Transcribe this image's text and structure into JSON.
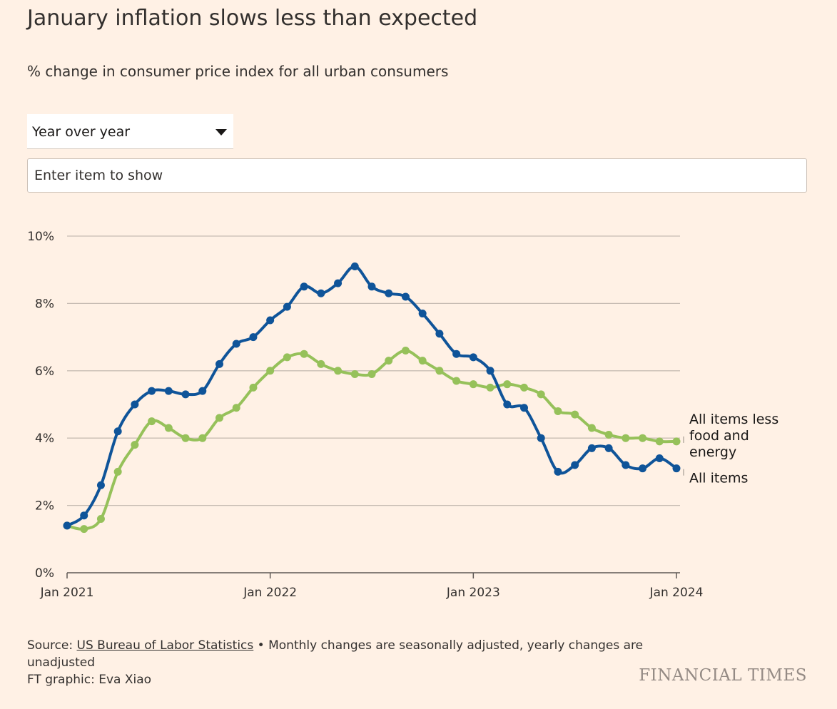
{
  "header": {
    "title": "January inflation slows less than expected",
    "subtitle": "% change in consumer price index for all urban consumers"
  },
  "controls": {
    "period_select": {
      "selected": "Year over year"
    },
    "item_search": {
      "placeholder": "Enter item to show"
    }
  },
  "footer": {
    "source_prefix": "Source: ",
    "source_link": "US Bureau of Labor Statistics",
    "source_note": " • Monthly changes are seasonally adjusted, yearly changes are unadjusted",
    "credit": "FT graphic: Eva Xiao",
    "brand": "FINANCIAL TIMES"
  },
  "chart_data": {
    "type": "line",
    "title": "January inflation slows less than expected",
    "subtitle": "% change in consumer price index for all urban consumers",
    "x": [
      "2021-01",
      "2021-02",
      "2021-03",
      "2021-04",
      "2021-05",
      "2021-06",
      "2021-07",
      "2021-08",
      "2021-09",
      "2021-10",
      "2021-11",
      "2021-12",
      "2022-01",
      "2022-02",
      "2022-03",
      "2022-04",
      "2022-05",
      "2022-06",
      "2022-07",
      "2022-08",
      "2022-09",
      "2022-10",
      "2022-11",
      "2022-12",
      "2023-01",
      "2023-02",
      "2023-03",
      "2023-04",
      "2023-05",
      "2023-06",
      "2023-07",
      "2023-08",
      "2023-09",
      "2023-10",
      "2023-11",
      "2023-12",
      "2024-01"
    ],
    "x_ticks": [
      "Jan 2021",
      "Jan 2022",
      "Jan 2023",
      "Jan 2024"
    ],
    "y_ticks": [
      "0%",
      "2%",
      "4%",
      "6%",
      "8%",
      "10%"
    ],
    "ylim": [
      0,
      10
    ],
    "grid": true,
    "legend": "inline labels at line ends (right)",
    "series": [
      {
        "name": "All items",
        "color": "#0f5499",
        "values": [
          1.4,
          1.7,
          2.6,
          4.2,
          5.0,
          5.4,
          5.4,
          5.3,
          5.4,
          6.2,
          6.8,
          7.0,
          7.5,
          7.9,
          8.5,
          8.3,
          8.6,
          9.1,
          8.5,
          8.3,
          8.2,
          7.7,
          7.1,
          6.5,
          6.4,
          6.0,
          5.0,
          4.9,
          4.0,
          3.0,
          3.2,
          3.7,
          3.7,
          3.2,
          3.1,
          3.4,
          3.1
        ]
      },
      {
        "name": "All items less food and energy",
        "color": "#96c15a",
        "values": [
          1.4,
          1.3,
          1.6,
          3.0,
          3.8,
          4.5,
          4.3,
          4.0,
          4.0,
          4.6,
          4.9,
          5.5,
          6.0,
          6.4,
          6.5,
          6.2,
          6.0,
          5.9,
          5.9,
          6.3,
          6.6,
          6.3,
          6.0,
          5.7,
          5.6,
          5.5,
          5.6,
          5.5,
          5.3,
          4.8,
          4.7,
          4.3,
          4.1,
          4.0,
          4.0,
          3.9,
          3.9
        ]
      }
    ]
  }
}
